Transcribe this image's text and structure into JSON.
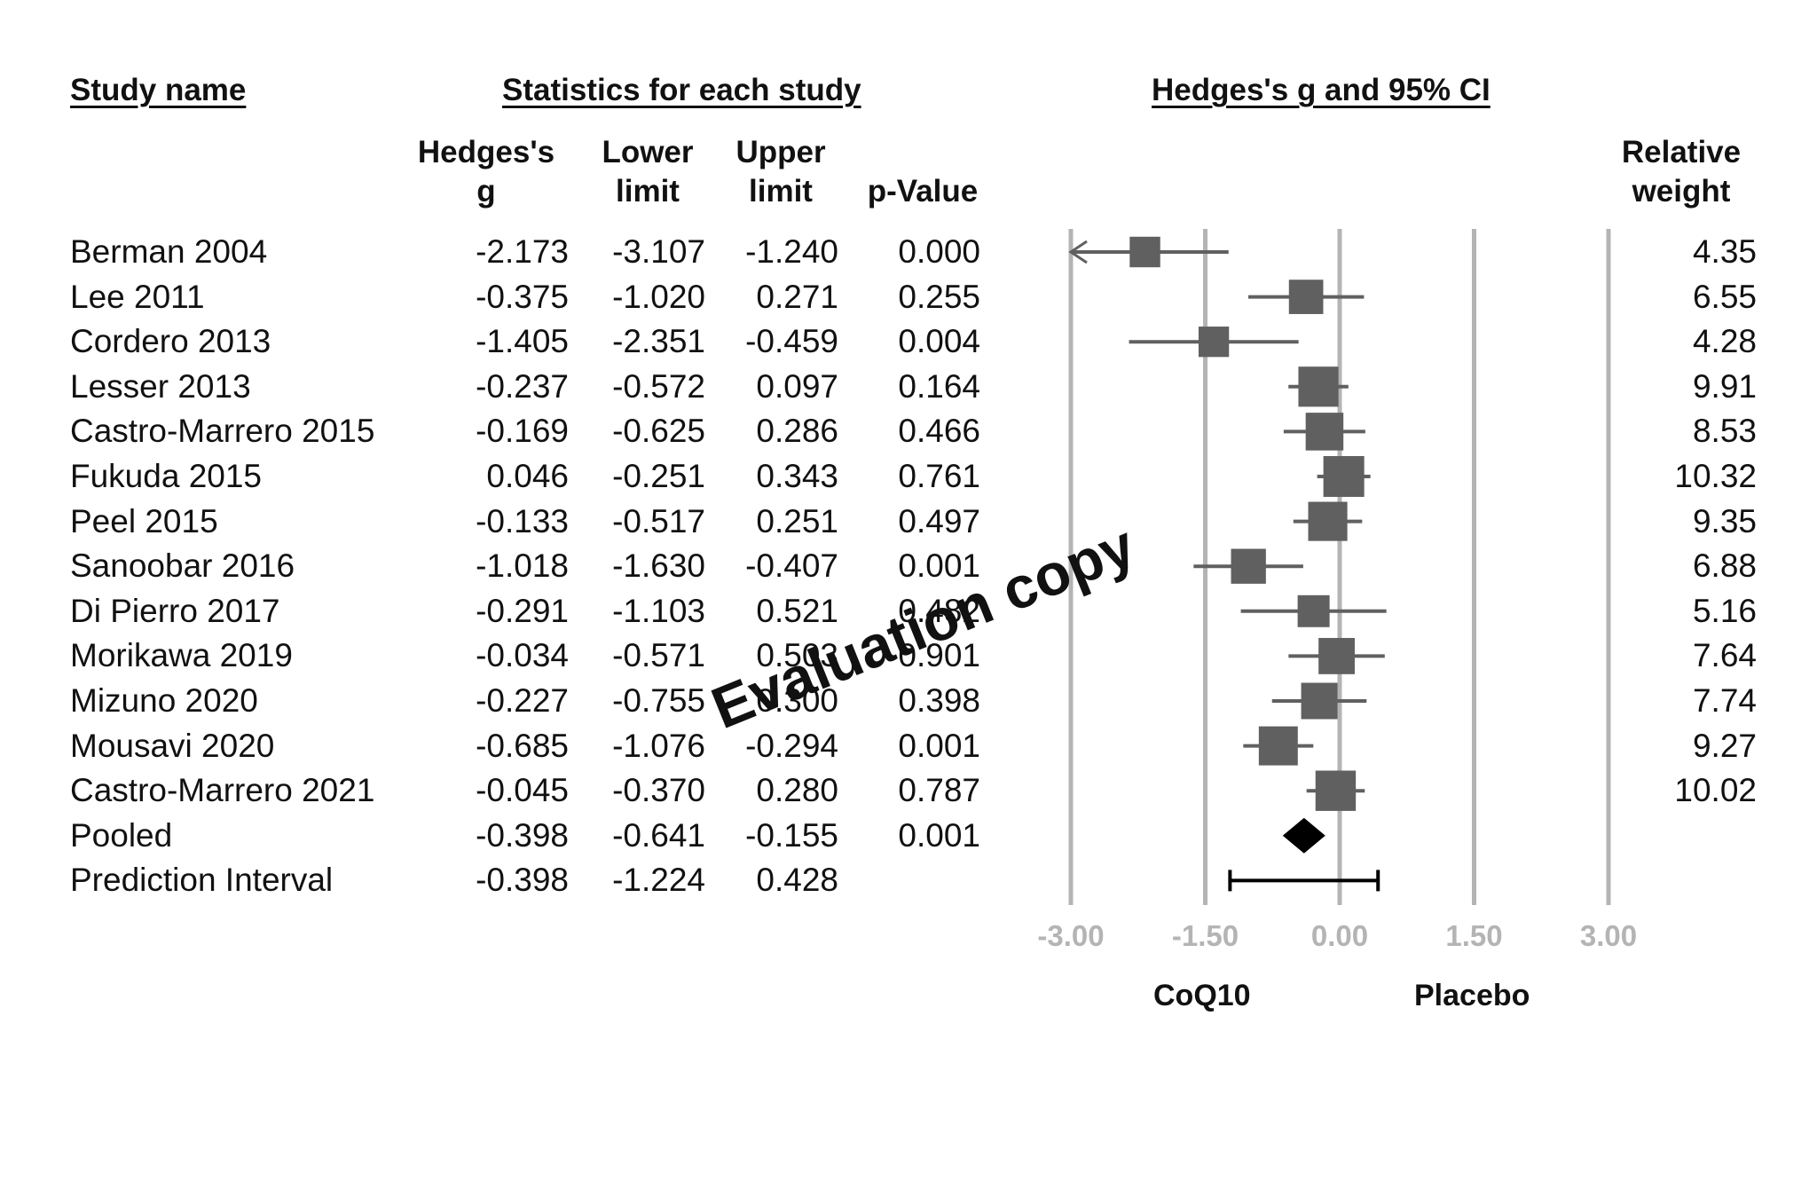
{
  "headers": {
    "study_name": "Study name",
    "statistics": "Statistics for each study",
    "effect_plot": "Hedges's g and 95% CI"
  },
  "columns": {
    "hedges_g": [
      "Hedges's",
      "g"
    ],
    "lower": [
      "Lower",
      "limit"
    ],
    "upper": [
      "Upper",
      "limit"
    ],
    "pvalue": [
      "",
      "p-Value"
    ],
    "weight": [
      "Relative",
      "weight"
    ]
  },
  "rows": [
    {
      "study": "Berman 2004",
      "g": "-2.173",
      "lower": "-3.107",
      "upper": "-1.240",
      "p": "0.000",
      "weight": "4.35"
    },
    {
      "study": "Lee 2011",
      "g": "-0.375",
      "lower": "-1.020",
      "upper": "0.271",
      "p": "0.255",
      "weight": "6.55"
    },
    {
      "study": "Cordero 2013",
      "g": "-1.405",
      "lower": "-2.351",
      "upper": "-0.459",
      "p": "0.004",
      "weight": "4.28"
    },
    {
      "study": "Lesser 2013",
      "g": "-0.237",
      "lower": "-0.572",
      "upper": "0.097",
      "p": "0.164",
      "weight": "9.91"
    },
    {
      "study": "Castro-Marrero 2015",
      "g": "-0.169",
      "lower": "-0.625",
      "upper": "0.286",
      "p": "0.466",
      "weight": "8.53"
    },
    {
      "study": "Fukuda 2015",
      "g": "0.046",
      "lower": "-0.251",
      "upper": "0.343",
      "p": "0.761",
      "weight": "10.32"
    },
    {
      "study": "Peel 2015",
      "g": "-0.133",
      "lower": "-0.517",
      "upper": "0.251",
      "p": "0.497",
      "weight": "9.35"
    },
    {
      "study": "Sanoobar 2016",
      "g": "-1.018",
      "lower": "-1.630",
      "upper": "-0.407",
      "p": "0.001",
      "weight": "6.88"
    },
    {
      "study": "Di Pierro 2017",
      "g": "-0.291",
      "lower": "-1.103",
      "upper": "0.521",
      "p": "0.482",
      "weight": "5.16"
    },
    {
      "study": "Morikawa 2019",
      "g": "-0.034",
      "lower": "-0.571",
      "upper": "0.503",
      "p": "0.901",
      "weight": "7.64"
    },
    {
      "study": "Mizuno 2020",
      "g": "-0.227",
      "lower": "-0.755",
      "upper": "0.300",
      "p": "0.398",
      "weight": "7.74"
    },
    {
      "study": "Mousavi 2020",
      "g": "-0.685",
      "lower": "-1.076",
      "upper": "-0.294",
      "p": "0.001",
      "weight": "9.27"
    },
    {
      "study": "Castro-Marrero 2021",
      "g": "-0.045",
      "lower": "-0.370",
      "upper": "0.280",
      "p": "0.787",
      "weight": "10.02"
    }
  ],
  "pooled": {
    "study": "Pooled",
    "g": "-0.398",
    "lower": "-0.641",
    "upper": "-0.155",
    "p": "0.001"
  },
  "prediction": {
    "study": "Prediction Interval",
    "g": "-0.398",
    "lower": "-1.224",
    "upper": "0.428"
  },
  "chart_data": {
    "type": "forest",
    "xlim": [
      -3.0,
      3.0
    ],
    "xticks": [
      "-3.00",
      "-1.50",
      "0.00",
      "1.50",
      "3.00"
    ],
    "xtick_values": [
      -3.0,
      -1.5,
      0.0,
      1.5,
      3.0
    ],
    "left_label": "CoQ10",
    "right_label": "Placebo",
    "grid": true,
    "colors": {
      "marker": "#606060",
      "pooled": "#000000",
      "grid": "#b4b4b4"
    }
  },
  "watermark": "Evaluation copy"
}
